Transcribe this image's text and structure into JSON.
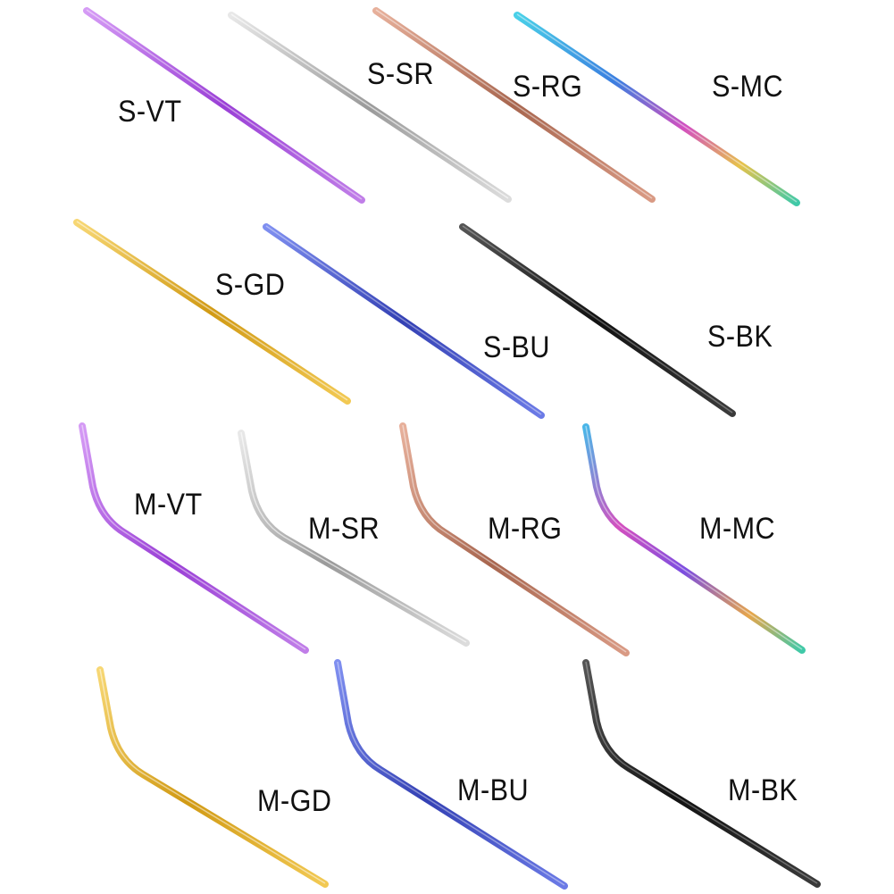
{
  "products": [
    {
      "code": "S-VT",
      "shape": "straight",
      "color": "#b36be0"
    },
    {
      "code": "S-SR",
      "shape": "straight",
      "color": "#c9c9c9"
    },
    {
      "code": "S-RG",
      "shape": "straight",
      "color": "#c98a72"
    },
    {
      "code": "S-MC",
      "shape": "straight",
      "color": "#3ab6c8"
    },
    {
      "code": "S-GD",
      "shape": "straight",
      "color": "#e8b63a"
    },
    {
      "code": "S-BU",
      "shape": "straight",
      "color": "#4a5cc8"
    },
    {
      "code": "S-BK",
      "shape": "straight",
      "color": "#2a2a2a"
    },
    {
      "code": "M-VT",
      "shape": "bent",
      "color": "#a85ee0"
    },
    {
      "code": "M-SR",
      "shape": "bent",
      "color": "#c4c4c4"
    },
    {
      "code": "M-RG",
      "shape": "bent",
      "color": "#c98a72"
    },
    {
      "code": "M-MC",
      "shape": "bent",
      "color": "#c84aa0"
    },
    {
      "code": "M-GD",
      "shape": "bent",
      "color": "#e0a420"
    },
    {
      "code": "M-BU",
      "shape": "bent",
      "color": "#4a5ad8"
    },
    {
      "code": "M-BK",
      "shape": "bent",
      "color": "#2a2a2a"
    }
  ]
}
